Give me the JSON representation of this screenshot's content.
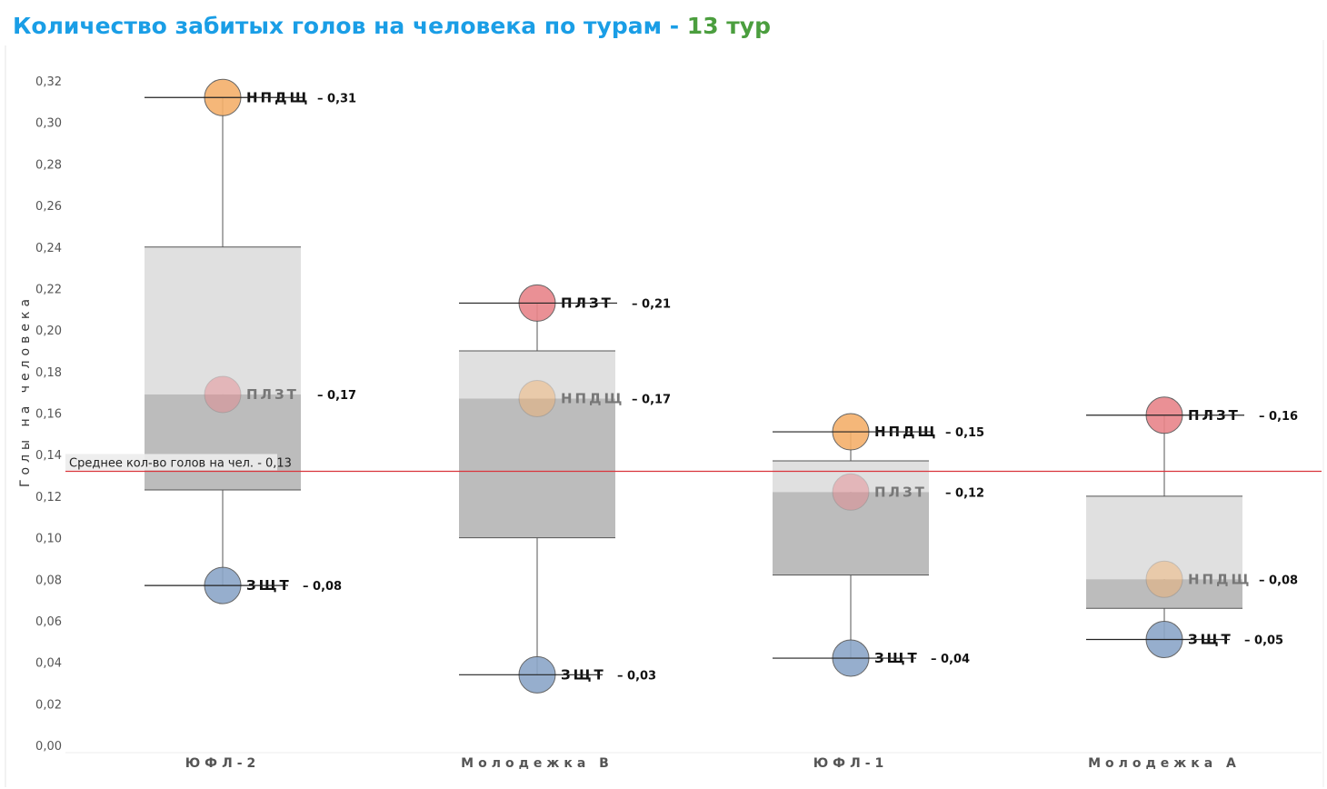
{
  "title": {
    "main": "Количество забитых голов на человека по турам - ",
    "accent": "13 тур",
    "main_color": "#1a9ee6",
    "accent_color": "#4b9e3e"
  },
  "chart_data": {
    "type": "box",
    "ylabel": "Голы на человека",
    "ylim": [
      0,
      0.32
    ],
    "y_ticks": [
      "0,00",
      "0,02",
      "0,04",
      "0,06",
      "0,08",
      "0,10",
      "0,12",
      "0,14",
      "0,16",
      "0,18",
      "0,20",
      "0,22",
      "0,24",
      "0,26",
      "0,28",
      "0,30",
      "0,32"
    ],
    "categories": [
      "ЮФЛ-2",
      "Молодежка B",
      "ЮФЛ-1",
      "Молодежка A"
    ],
    "mean": {
      "value": 0.132,
      "label": "Среднее кол-во голов на чел. - 0,13",
      "color": "#d9353c"
    },
    "colors": {
      "НПДЩ": "#f5b06b",
      "ПЛЗТ": "#e8848a",
      "ЗЩТ": "#8ba6c8",
      "box_upper": "#e0e0e0",
      "box_lower": "#bcbcbc"
    },
    "groups": [
      {
        "category": "ЮФЛ-2",
        "box": {
          "q1": 0.123,
          "median": 0.169,
          "q3": 0.24
        },
        "points": [
          {
            "name": "НПДЩ",
            "value": 0.312,
            "label": "0,31",
            "muted": false
          },
          {
            "name": "ПЛЗТ",
            "value": 0.169,
            "label": "0,17",
            "muted": true
          },
          {
            "name": "ЗЩТ",
            "value": 0.077,
            "label": "0,08",
            "muted": false
          }
        ]
      },
      {
        "category": "Молодежка B",
        "box": {
          "q1": 0.1,
          "median": 0.167,
          "q3": 0.19
        },
        "points": [
          {
            "name": "ПЛЗТ",
            "value": 0.213,
            "label": "0,21",
            "muted": false
          },
          {
            "name": "НПДЩ",
            "value": 0.167,
            "label": "0,17",
            "muted": true
          },
          {
            "name": "ЗЩТ",
            "value": 0.034,
            "label": "0,03",
            "muted": false
          }
        ]
      },
      {
        "category": "ЮФЛ-1",
        "box": {
          "q1": 0.082,
          "median": 0.122,
          "q3": 0.137
        },
        "points": [
          {
            "name": "НПДЩ",
            "value": 0.151,
            "label": "0,15",
            "muted": false
          },
          {
            "name": "ПЛЗТ",
            "value": 0.122,
            "label": "0,12",
            "muted": true
          },
          {
            "name": "ЗЩТ",
            "value": 0.042,
            "label": "0,04",
            "muted": false
          }
        ]
      },
      {
        "category": "Молодежка A",
        "box": {
          "q1": 0.066,
          "median": 0.08,
          "q3": 0.12
        },
        "points": [
          {
            "name": "ПЛЗТ",
            "value": 0.159,
            "label": "0,16",
            "muted": false
          },
          {
            "name": "НПДЩ",
            "value": 0.08,
            "label": "0,08",
            "muted": true
          },
          {
            "name": "ЗЩТ",
            "value": 0.051,
            "label": "0,05",
            "muted": false
          }
        ]
      }
    ]
  }
}
